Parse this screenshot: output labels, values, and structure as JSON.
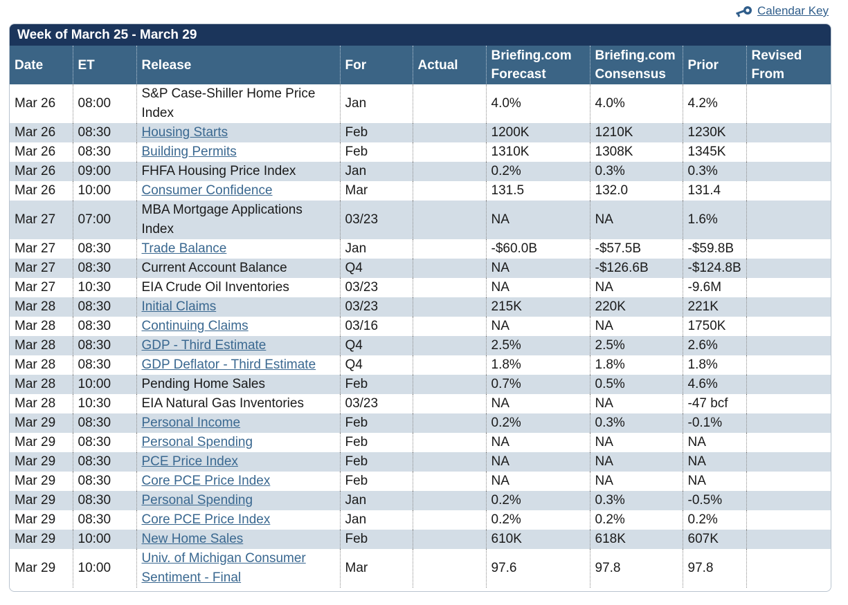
{
  "calendar_key": {
    "label": "Calendar Key",
    "icon": "key-icon"
  },
  "week_title": "Week of March 25 - March 29",
  "columns": {
    "date": "Date",
    "et": "ET",
    "release": "Release",
    "for": "For",
    "actual": "Actual",
    "forecast_1": "Briefing.com",
    "forecast_2": "Forecast",
    "consensus_1": "Briefing.com",
    "consensus_2": "Consensus",
    "prior": "Prior",
    "revised_1": "Revised",
    "revised_2": "From"
  },
  "rows": [
    {
      "date": "Mar 26",
      "et": "08:00",
      "release": "S&P Case-Shiller Home Price Index",
      "link": false,
      "for": "Jan",
      "actual": "",
      "forecast": "4.0%",
      "consensus": "4.0%",
      "prior": "4.2%",
      "revised": ""
    },
    {
      "date": "Mar 26",
      "et": "08:30",
      "release": "Housing Starts",
      "link": true,
      "for": "Feb",
      "actual": "",
      "forecast": "1200K",
      "consensus": "1210K",
      "prior": "1230K",
      "revised": ""
    },
    {
      "date": "Mar 26",
      "et": "08:30",
      "release": "Building Permits",
      "link": true,
      "for": "Feb",
      "actual": "",
      "forecast": "1310K",
      "consensus": "1308K",
      "prior": "1345K",
      "revised": ""
    },
    {
      "date": "Mar 26",
      "et": "09:00",
      "release": "FHFA Housing Price Index",
      "link": false,
      "for": "Jan",
      "actual": "",
      "forecast": "0.2%",
      "consensus": "0.3%",
      "prior": "0.3%",
      "revised": ""
    },
    {
      "date": "Mar 26",
      "et": "10:00",
      "release": "Consumer Confidence",
      "link": true,
      "for": "Mar",
      "actual": "",
      "forecast": "131.5",
      "consensus": "132.0",
      "prior": "131.4",
      "revised": ""
    },
    {
      "date": "Mar 27",
      "et": "07:00",
      "release": "MBA Mortgage Applications Index",
      "link": false,
      "for": "03/23",
      "actual": "",
      "forecast": "NA",
      "consensus": "NA",
      "prior": "1.6%",
      "revised": ""
    },
    {
      "date": "Mar 27",
      "et": "08:30",
      "release": "Trade Balance",
      "link": true,
      "for": "Jan",
      "actual": "",
      "forecast": "-$60.0B",
      "consensus": "-$57.5B",
      "prior": "-$59.8B",
      "revised": ""
    },
    {
      "date": "Mar 27",
      "et": "08:30",
      "release": "Current Account Balance",
      "link": false,
      "for": "Q4",
      "actual": "",
      "forecast": "NA",
      "consensus": "-$126.6B",
      "prior": "-$124.8B",
      "revised": ""
    },
    {
      "date": "Mar 27",
      "et": "10:30",
      "release": "EIA Crude Oil Inventories",
      "link": false,
      "for": "03/23",
      "actual": "",
      "forecast": "NA",
      "consensus": "NA",
      "prior": "-9.6M",
      "revised": ""
    },
    {
      "date": "Mar 28",
      "et": "08:30",
      "release": "Initial Claims",
      "link": true,
      "for": "03/23",
      "actual": "",
      "forecast": "215K",
      "consensus": "220K",
      "prior": "221K",
      "revised": ""
    },
    {
      "date": "Mar 28",
      "et": "08:30",
      "release": "Continuing Claims",
      "link": true,
      "for": "03/16",
      "actual": "",
      "forecast": "NA",
      "consensus": "NA",
      "prior": "1750K",
      "revised": ""
    },
    {
      "date": "Mar 28",
      "et": "08:30",
      "release": "GDP - Third Estimate",
      "link": true,
      "for": "Q4",
      "actual": "",
      "forecast": "2.5%",
      "consensus": "2.5%",
      "prior": "2.6%",
      "revised": ""
    },
    {
      "date": "Mar 28",
      "et": "08:30",
      "release": "GDP Deflator - Third Estimate",
      "link": true,
      "for": "Q4",
      "actual": "",
      "forecast": "1.8%",
      "consensus": "1.8%",
      "prior": "1.8%",
      "revised": ""
    },
    {
      "date": "Mar 28",
      "et": "10:00",
      "release": "Pending Home Sales",
      "link": false,
      "for": "Feb",
      "actual": "",
      "forecast": "0.7%",
      "consensus": "0.5%",
      "prior": "4.6%",
      "revised": ""
    },
    {
      "date": "Mar 28",
      "et": "10:30",
      "release": "EIA Natural Gas Inventories",
      "link": false,
      "for": "03/23",
      "actual": "",
      "forecast": "NA",
      "consensus": "NA",
      "prior": "-47 bcf",
      "revised": ""
    },
    {
      "date": "Mar 29",
      "et": "08:30",
      "release": "Personal Income",
      "link": true,
      "for": "Feb",
      "actual": "",
      "forecast": "0.2%",
      "consensus": "0.3%",
      "prior": "-0.1%",
      "revised": ""
    },
    {
      "date": "Mar 29",
      "et": "08:30",
      "release": "Personal Spending",
      "link": true,
      "for": "Feb",
      "actual": "",
      "forecast": "NA",
      "consensus": "NA",
      "prior": "NA",
      "revised": ""
    },
    {
      "date": "Mar 29",
      "et": "08:30",
      "release": "PCE Price Index",
      "link": true,
      "for": "Feb",
      "actual": "",
      "forecast": "NA",
      "consensus": "NA",
      "prior": "NA",
      "revised": ""
    },
    {
      "date": "Mar 29",
      "et": "08:30",
      "release": "Core PCE Price Index",
      "link": true,
      "for": "Feb",
      "actual": "",
      "forecast": "NA",
      "consensus": "NA",
      "prior": "NA",
      "revised": ""
    },
    {
      "date": "Mar 29",
      "et": "08:30",
      "release": "Personal Spending",
      "link": true,
      "for": "Jan",
      "actual": "",
      "forecast": "0.2%",
      "consensus": "0.3%",
      "prior": "-0.5%",
      "revised": ""
    },
    {
      "date": "Mar 29",
      "et": "08:30",
      "release": "Core PCE Price Index",
      "link": true,
      "for": "Jan",
      "actual": "",
      "forecast": "0.2%",
      "consensus": "0.2%",
      "prior": "0.2%",
      "revised": ""
    },
    {
      "date": "Mar 29",
      "et": "10:00",
      "release": "New Home Sales",
      "link": true,
      "for": "Feb",
      "actual": "",
      "forecast": "610K",
      "consensus": "618K",
      "prior": "607K",
      "revised": ""
    },
    {
      "date": "Mar 29",
      "et": "10:00",
      "release": "Univ. of Michigan Consumer Sentiment - Final",
      "link": true,
      "for": "Mar",
      "actual": "",
      "forecast": "97.6",
      "consensus": "97.8",
      "prior": "97.8",
      "revised": ""
    }
  ],
  "tall_rows": [
    0,
    5,
    22
  ]
}
